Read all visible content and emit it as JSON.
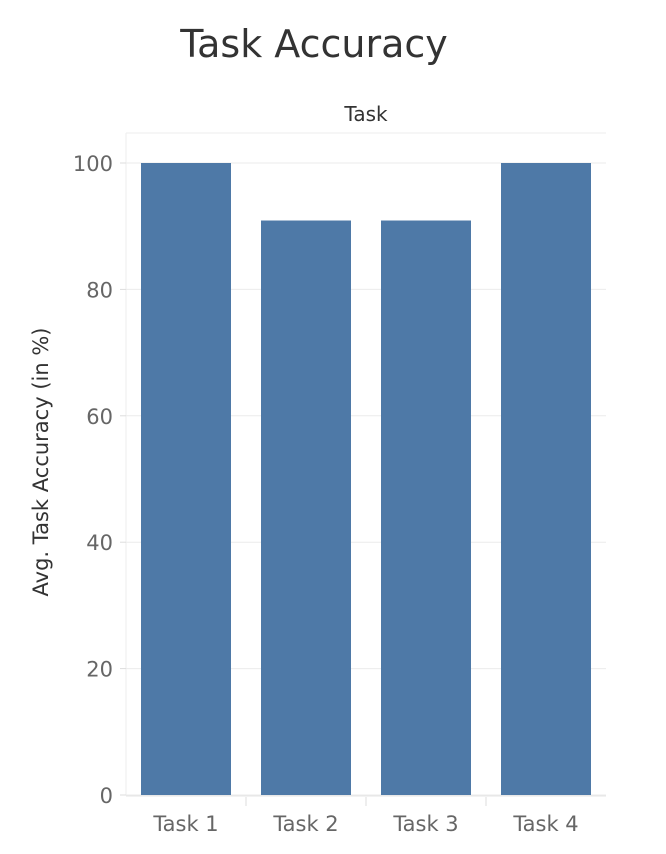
{
  "chart_data": {
    "type": "bar",
    "title": "Task Accuracy",
    "column_header": "Task",
    "xlabel": "",
    "ylabel": "Avg. Task Accuracy (in %)",
    "categories": [
      "Task 1",
      "Task 2",
      "Task 3",
      "Task 4"
    ],
    "values": [
      100,
      90.9,
      90.9,
      100
    ],
    "ylim": [
      0,
      100
    ],
    "yticks": [
      0,
      20,
      40,
      60,
      80,
      100
    ],
    "grid": true,
    "bar_color": "#4E79A7",
    "gridline_color": "#EBEBEB"
  }
}
